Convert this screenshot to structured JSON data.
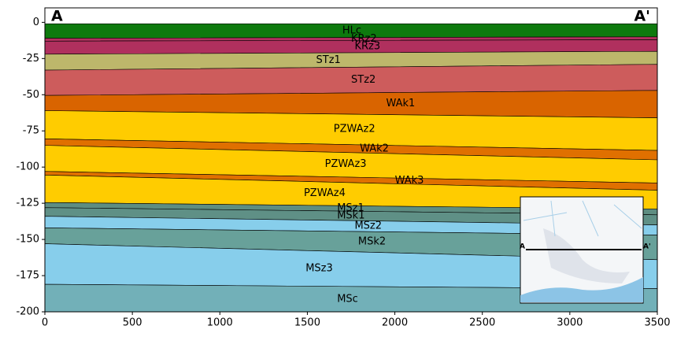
{
  "chart_data": {
    "type": "cross_section",
    "corner_labels": [
      "A",
      "A'"
    ],
    "x": [
      0,
      3500
    ],
    "xlim": [
      0,
      3500
    ],
    "ylim": [
      -200,
      10
    ],
    "xticks": [
      0,
      500,
      1000,
      1500,
      2000,
      2500,
      3000,
      3500
    ],
    "yticks": [
      0,
      -25,
      -50,
      -75,
      -100,
      -125,
      -150,
      -175,
      -200
    ],
    "series": [
      {
        "name": "HLc",
        "color": "#0e7a0e",
        "values": [
          -1,
          -1
        ]
      },
      {
        "name": "KRz2",
        "color": "#b0305e",
        "values": [
          -11,
          -10
        ]
      },
      {
        "name": "KRz3",
        "color": "#b0305e",
        "values": [
          -13,
          -12
        ]
      },
      {
        "name": "STz1",
        "color": "#bdb76b",
        "values": [
          -22,
          -20
        ]
      },
      {
        "name": "STz2",
        "color": "#cd5c5c",
        "values": [
          -33,
          -29
        ]
      },
      {
        "name": "WAk1",
        "color": "#d96400",
        "values": [
          -50.5,
          -47
        ]
      },
      {
        "name": "PZWAz2",
        "color": "#ffcc00",
        "values": [
          -61,
          -66
        ]
      },
      {
        "name": "WAk2",
        "color": "#e07000",
        "values": [
          -80.5,
          -88.5
        ]
      },
      {
        "name": "PZWAz3",
        "color": "#ffcc00",
        "values": [
          -85,
          -95
        ]
      },
      {
        "name": "WAk3",
        "color": "#e07000",
        "values": [
          -103,
          -111
        ]
      },
      {
        "name": "PZWAz4",
        "color": "#ffcc00",
        "values": [
          -105.5,
          -116
        ]
      },
      {
        "name": "MSz1",
        "color": "#5e8d81",
        "values": [
          -124.5,
          -129
        ]
      },
      {
        "name": "MSk1",
        "color": "#5f9086",
        "values": [
          -128,
          -133
        ]
      },
      {
        "name": "MSz2",
        "color": "#87ceeb",
        "values": [
          -134,
          -140
        ]
      },
      {
        "name": "MSk2",
        "color": "#68a19a",
        "values": [
          -142,
          -147
        ]
      },
      {
        "name": "MSz3",
        "color": "#87ceeb",
        "values": [
          -153,
          -164
        ]
      },
      {
        "name": "MSc",
        "color": "#72b0b8",
        "values": [
          -181,
          -184
        ]
      }
    ]
  }
}
